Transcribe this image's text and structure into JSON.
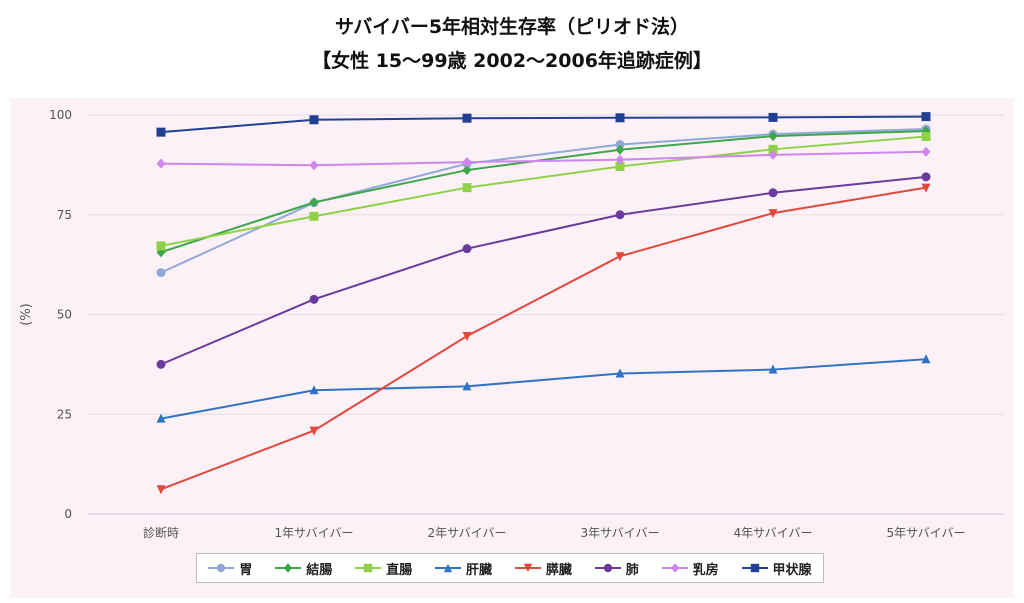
{
  "chart_data": {
    "type": "line",
    "title": "サバイバー5年相対生存率（ピリオド法）",
    "subtitle": "【女性 15〜99歳 2002〜2006年追跡症例】",
    "ylabel": "(%)",
    "xlabel": "",
    "ylim": [
      0,
      100
    ],
    "yticks": [
      0,
      25,
      50,
      75,
      100
    ],
    "categories": [
      "診断時",
      "1年サバイバー",
      "2年サバイバー",
      "3年サバイバー",
      "4年サバイバー",
      "5年サバイバー"
    ],
    "grid": true,
    "legend_position": "bottom",
    "series": [
      {
        "name": "胃",
        "color": "#92a8d8",
        "marker": "circle",
        "values": [
          60.5,
          78,
          87.8,
          92.6,
          95.2,
          96.5
        ]
      },
      {
        "name": "結腸",
        "color": "#3fa64a",
        "marker": "diamond",
        "values": [
          65.6,
          78.1,
          86.2,
          91.3,
          94.7,
          96
        ]
      },
      {
        "name": "直腸",
        "color": "#8fd24a",
        "marker": "square",
        "values": [
          67.2,
          74.6,
          81.8,
          87.1,
          91.4,
          94.6
        ]
      },
      {
        "name": "肝臓",
        "color": "#2f73c2",
        "marker": "triangle-up",
        "values": [
          23.9,
          31,
          32,
          35.2,
          36.2,
          38.8
        ]
      },
      {
        "name": "膵臓",
        "color": "#e4473c",
        "marker": "triangle-down",
        "values": [
          6.2,
          20.9,
          44.6,
          64.6,
          75.4,
          81.8
        ]
      },
      {
        "name": "肺",
        "color": "#6b3a9e",
        "marker": "circle",
        "values": [
          37.5,
          53.8,
          66.5,
          75,
          80.5,
          84.5
        ]
      },
      {
        "name": "乳房",
        "color": "#cf86ec",
        "marker": "diamond",
        "values": [
          87.8,
          87.4,
          88.2,
          88.8,
          90,
          90.8
        ]
      },
      {
        "name": "甲状腺",
        "color": "#213f93",
        "marker": "square",
        "values": [
          95.7,
          98.8,
          99.2,
          99.3,
          99.4,
          99.6
        ]
      }
    ]
  }
}
